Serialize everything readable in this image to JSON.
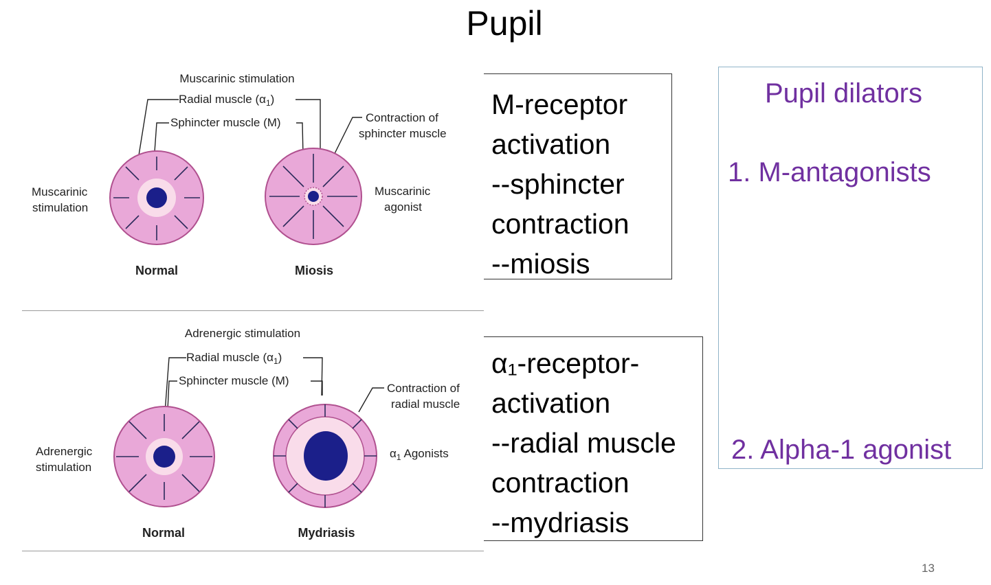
{
  "title": "Pupil",
  "diagram_top": {
    "header": "Muscarinic stimulation",
    "radial_label": "Radial muscle (α",
    "radial_sub": "1",
    "sphincter_label": "Sphincter muscle (M)",
    "contraction_line1": "Contraction of",
    "contraction_line2": "sphincter muscle",
    "left_line1": "Muscarinic",
    "left_line2": "stimulation",
    "right_line1": "Muscarinic",
    "right_line2": "agonist",
    "caption_left": "Normal",
    "caption_right": "Miosis"
  },
  "diagram_bottom": {
    "header": "Adrenergic stimulation",
    "radial_label": "Radial muscle (α",
    "radial_sub": "1",
    "sphincter_label": "Sphincter muscle (M)",
    "contraction_line1": "Contraction of",
    "contraction_line2": "radial muscle",
    "left_line1": "Adrenergic",
    "left_line2": "stimulation",
    "agonist_alpha": "α",
    "agonist_sub": "1",
    "agonist_label": "Agonists",
    "caption_left": "Normal",
    "caption_right": "Mydriasis"
  },
  "box_m": {
    "lines": [
      "M-receptor",
      "activation",
      "--sphincter",
      "contraction",
      "--miosis"
    ]
  },
  "box_alpha": {
    "lines": [
      "α₁-receptor-",
      "activation",
      "--radial muscle",
      "contraction",
      "--mydriasis"
    ]
  },
  "dilators": {
    "heading": "Pupil dilators",
    "item1": "1. M-antagonists",
    "item2": "2. Alpha-1 agonist"
  },
  "page_number": "13",
  "colors": {
    "iris_pink": "#e9a8d8",
    "iris_outline": "#b0508f",
    "ring_light": "#f9dcea",
    "pupil_blue": "#1b1f8a",
    "dilators_text": "#7030a0"
  }
}
